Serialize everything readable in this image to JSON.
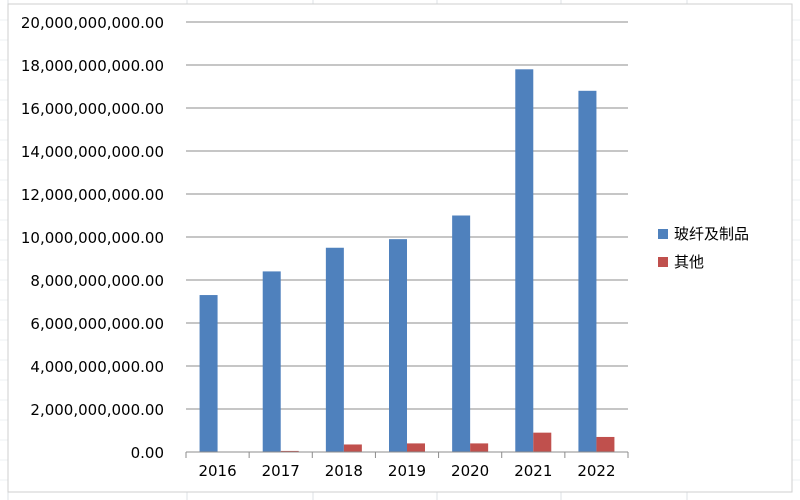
{
  "chart_data": {
    "type": "bar",
    "title": "",
    "xlabel": "",
    "ylabel": "",
    "categories": [
      "2016",
      "2017",
      "2018",
      "2019",
      "2020",
      "2021",
      "2022"
    ],
    "series": [
      {
        "name": "玻纤及制品",
        "color": "#4f81bd",
        "values": [
          7300000000,
          8400000000,
          9500000000,
          9900000000,
          11000000000,
          17800000000,
          16800000000
        ]
      },
      {
        "name": "其他",
        "color": "#c0504d",
        "values": [
          0,
          50000000,
          350000000,
          400000000,
          400000000,
          900000000,
          700000000
        ]
      }
    ],
    "ylim": [
      0,
      20000000000
    ],
    "yticks": [
      {
        "value": 0,
        "label": "0.00"
      },
      {
        "value": 2000000000,
        "label": "2,000,000,000.00"
      },
      {
        "value": 4000000000,
        "label": "4,000,000,000.00"
      },
      {
        "value": 6000000000,
        "label": "6,000,000,000.00"
      },
      {
        "value": 8000000000,
        "label": "8,000,000,000.00"
      },
      {
        "value": 10000000000,
        "label": "10,000,000,000.00"
      },
      {
        "value": 12000000000,
        "label": "12,000,000,000.00"
      },
      {
        "value": 14000000000,
        "label": "14,000,000,000.00"
      },
      {
        "value": 16000000000,
        "label": "16,000,000,000.00"
      },
      {
        "value": 18000000000,
        "label": "18,000,000,000.00"
      },
      {
        "value": 20000000000,
        "label": "20,000,000,000.00"
      }
    ],
    "grid": true,
    "legend_position": "right"
  }
}
